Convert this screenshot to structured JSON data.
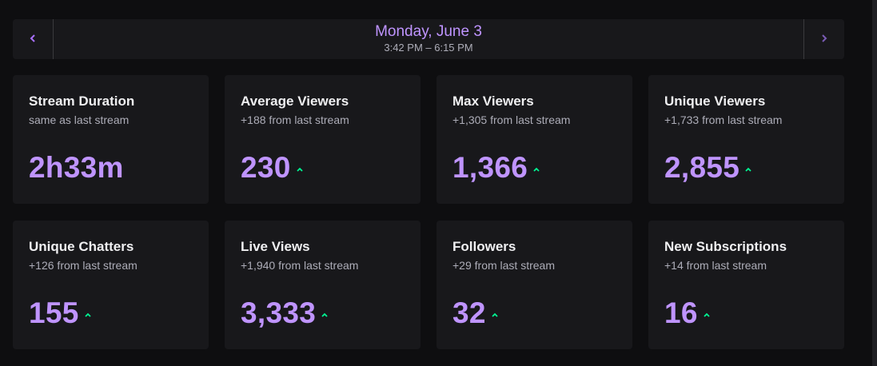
{
  "header": {
    "date": "Monday, June 3",
    "time_range": "3:42 PM – 6:15 PM",
    "prev_icon": "chevron-left-icon",
    "next_icon": "chevron-right-icon"
  },
  "colors": {
    "background": "#0e0e10",
    "card": "#18181b",
    "accent": "#bf94ff",
    "up": "#00f593",
    "muted": "#adadb8"
  },
  "cards": [
    {
      "title": "Stream Duration",
      "sub": "same as last stream",
      "value": "2h33m",
      "trend": "none"
    },
    {
      "title": "Average Viewers",
      "sub": "+188 from last stream",
      "value": "230",
      "trend": "up"
    },
    {
      "title": "Max Viewers",
      "sub": "+1,305 from last stream",
      "value": "1,366",
      "trend": "up"
    },
    {
      "title": "Unique Viewers",
      "sub": "+1,733 from last stream",
      "value": "2,855",
      "trend": "up"
    },
    {
      "title": "Unique Chatters",
      "sub": "+126 from last stream",
      "value": "155",
      "trend": "up"
    },
    {
      "title": "Live Views",
      "sub": "+1,940 from last stream",
      "value": "3,333",
      "trend": "up"
    },
    {
      "title": "Followers",
      "sub": "+29 from last stream",
      "value": "32",
      "trend": "up"
    },
    {
      "title": "New Subscriptions",
      "sub": "+14 from last stream",
      "value": "16",
      "trend": "up"
    }
  ]
}
